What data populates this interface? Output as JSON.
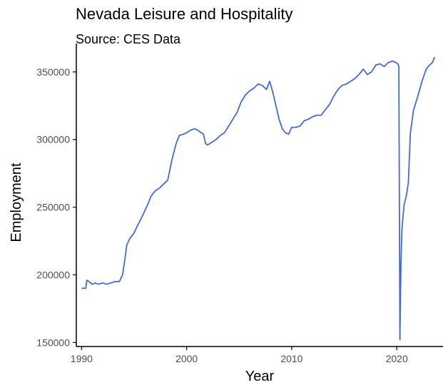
{
  "chart_data": {
    "type": "line",
    "title": "Nevada Leisure and Hospitality",
    "subtitle": "Source: CES Data",
    "xlabel": "Year",
    "ylabel": "Employment",
    "xlim": [
      1989.5,
      2024.4
    ],
    "ylim": [
      147000,
      371000
    ],
    "x_ticks": [
      1990,
      2000,
      2010,
      2020
    ],
    "y_ticks": [
      150000,
      200000,
      250000,
      300000,
      350000
    ],
    "x_tick_labels": [
      "1990",
      "2000",
      "2010",
      "2020"
    ],
    "y_tick_labels": [
      "150000",
      "200000",
      "250000",
      "300000",
      "350000"
    ],
    "grid": false,
    "colors": {
      "line": "#4169E1",
      "axis": "#000000",
      "tick_label": "#4d4d4d"
    },
    "series": [
      {
        "x": [
          1990.0,
          1990.4,
          1990.5,
          1990.7,
          1991.0,
          1991.3,
          1991.6,
          1992.0,
          1992.4,
          1992.8,
          1993.2,
          1993.6,
          1993.9,
          1994.1,
          1994.3,
          1994.6,
          1995.0,
          1995.3,
          1995.7,
          1996.0,
          1996.3,
          1996.6,
          1997.0,
          1997.4,
          1997.8,
          1998.2,
          1998.6,
          1999.0,
          1999.3,
          1999.7,
          2000.0,
          2000.4,
          2000.8,
          2001.2,
          2001.6,
          2001.8,
          2002.0,
          2002.4,
          2002.8,
          2003.2,
          2003.6,
          2004.0,
          2004.4,
          2004.8,
          2005.2,
          2005.6,
          2006.0,
          2006.4,
          2006.8,
          2007.2,
          2007.6,
          2007.9,
          2008.2,
          2008.5,
          2008.8,
          2009.1,
          2009.4,
          2009.7,
          2010.0,
          2010.4,
          2010.8,
          2011.2,
          2011.6,
          2012.0,
          2012.4,
          2012.8,
          2013.2,
          2013.6,
          2014.0,
          2014.4,
          2014.8,
          2015.2,
          2015.6,
          2016.0,
          2016.4,
          2016.8,
          2017.2,
          2017.6,
          2018.0,
          2018.4,
          2018.8,
          2019.2,
          2019.6,
          2019.9,
          2020.1,
          2020.2,
          2020.3,
          2020.4,
          2020.5,
          2020.6,
          2020.7,
          2020.9,
          2021.1,
          2021.3,
          2021.6,
          2022.0,
          2022.4,
          2022.8,
          2023.1,
          2023.4,
          2023.6
        ],
        "y": [
          190000,
          190000,
          196000,
          195000,
          193000,
          194000,
          193000,
          194000,
          193000,
          194000,
          195000,
          195000,
          200000,
          210000,
          222000,
          227000,
          231000,
          236000,
          242000,
          247000,
          252000,
          258000,
          262000,
          264000,
          267000,
          270000,
          285000,
          297000,
          303000,
          304000,
          305000,
          307000,
          308000,
          306000,
          304000,
          297000,
          296000,
          298000,
          300000,
          303000,
          305000,
          310000,
          315000,
          320000,
          328000,
          333000,
          336000,
          338000,
          341000,
          340000,
          337000,
          343000,
          335000,
          325000,
          315000,
          308000,
          305000,
          304000,
          309000,
          309000,
          310000,
          314000,
          315000,
          317000,
          318000,
          318000,
          322000,
          326000,
          332000,
          337000,
          340000,
          341000,
          343000,
          345000,
          348000,
          352000,
          348000,
          350000,
          355000,
          356000,
          354000,
          357000,
          358000,
          357000,
          356000,
          354000,
          152000,
          210000,
          235000,
          243000,
          252000,
          258000,
          268000,
          305000,
          322000,
          332000,
          343000,
          352000,
          355000,
          357000,
          361000
        ]
      }
    ]
  }
}
